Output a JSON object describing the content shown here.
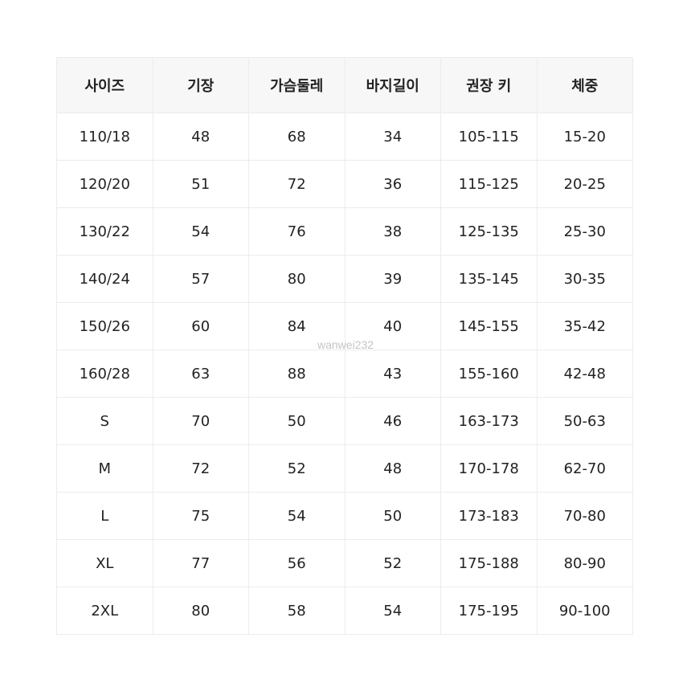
{
  "table": {
    "headers": [
      "사이즈",
      "기장",
      "가슴둘레",
      "바지길이",
      "권장 키",
      "체중"
    ],
    "rows": [
      [
        "110/18",
        "48",
        "68",
        "34",
        "105-115",
        "15-20"
      ],
      [
        "120/20",
        "51",
        "72",
        "36",
        "115-125",
        "20-25"
      ],
      [
        "130/22",
        "54",
        "76",
        "38",
        "125-135",
        "25-30"
      ],
      [
        "140/24",
        "57",
        "80",
        "39",
        "135-145",
        "30-35"
      ],
      [
        "150/26",
        "60",
        "84",
        "40",
        "145-155",
        "35-42"
      ],
      [
        "160/28",
        "63",
        "88",
        "43",
        "155-160",
        "42-48"
      ],
      [
        "S",
        "70",
        "50",
        "46",
        "163-173",
        "50-63"
      ],
      [
        "M",
        "72",
        "52",
        "48",
        "170-178",
        "62-70"
      ],
      [
        "L",
        "75",
        "54",
        "50",
        "173-183",
        "70-80"
      ],
      [
        "XL",
        "77",
        "56",
        "52",
        "175-188",
        "80-90"
      ],
      [
        "2XL",
        "80",
        "58",
        "54",
        "175-195",
        "90-100"
      ]
    ]
  },
  "watermark": "wanwei232",
  "colors": {
    "header_bg": "#f7f7f7",
    "border": "#ececec",
    "watermark": "#c4c4c4"
  }
}
